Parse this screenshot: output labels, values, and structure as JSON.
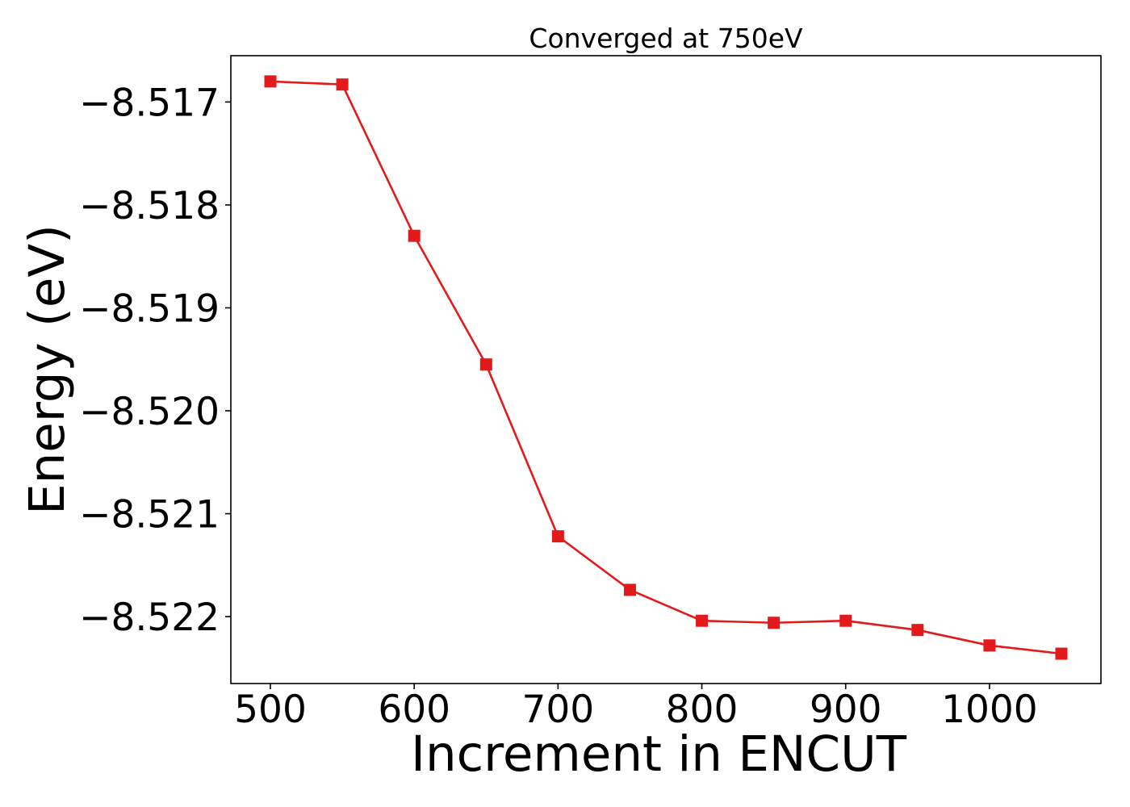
{
  "chart_data": {
    "type": "line",
    "title": "Converged at 750eV",
    "xlabel": "Increment in ENCUT",
    "ylabel": "Energy (eV)",
    "xlim": [
      472.5,
      1077.5
    ],
    "ylim": [
      -8.52265,
      -8.51655
    ],
    "xticks": [
      500,
      600,
      700,
      800,
      900,
      1000
    ],
    "xtick_labels": [
      "500",
      "600",
      "700",
      "800",
      "900",
      "1000"
    ],
    "yticks": [
      -8.517,
      -8.518,
      -8.519,
      -8.52,
      -8.521,
      -8.522
    ],
    "ytick_labels": [
      "−8.517",
      "−8.518",
      "−8.519",
      "−8.520",
      "−8.521",
      "−8.522"
    ],
    "grid": false,
    "legend": "none",
    "series": [
      {
        "color": "#e31a1c",
        "marker": "square",
        "x": [
          500,
          550,
          600,
          650,
          700,
          750,
          800,
          850,
          900,
          950,
          1000,
          1050
        ],
        "y": [
          -8.5168,
          -8.51683,
          -8.5183,
          -8.51955,
          -8.52122,
          -8.52174,
          -8.52204,
          -8.52206,
          -8.52204,
          -8.52213,
          -8.52228,
          -8.52236
        ]
      }
    ]
  }
}
